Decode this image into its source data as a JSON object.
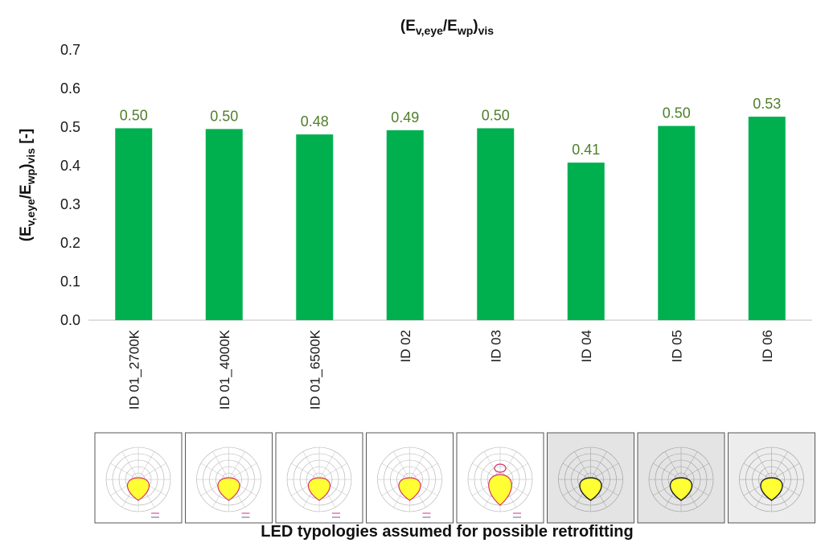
{
  "chart_data": {
    "type": "bar",
    "title_parts": [
      "(E",
      "v,eye",
      "/E",
      "wp",
      ")",
      "vis"
    ],
    "ylabel_parts": [
      "(E",
      "v,eye",
      "/E",
      "wp",
      ")",
      "vis",
      "  [-]"
    ],
    "xlabel": "LED typologies assumed for possible retrofitting",
    "categories": [
      "ID 01_2700K",
      "ID 01_4000K",
      "ID 01_6500K",
      "ID 02",
      "ID 03",
      "ID 04",
      "ID 05",
      "ID 06"
    ],
    "values": [
      0.497,
      0.495,
      0.481,
      0.492,
      0.497,
      0.408,
      0.503,
      0.527
    ],
    "data_labels": [
      "0.50",
      "0.50",
      "0.48",
      "0.49",
      "0.50",
      "0.41",
      "0.50",
      "0.53"
    ],
    "ylim": [
      0,
      0.7
    ],
    "yticks": [
      "0.0",
      "0.1",
      "0.2",
      "0.3",
      "0.4",
      "0.5",
      "0.6",
      "0.7"
    ],
    "bar_color": "#00b04f",
    "label_color": "#4f7f2a",
    "grid": false,
    "thumbnails": [
      {
        "style": "pink",
        "bg": "#ffffff"
      },
      {
        "style": "pink",
        "bg": "#ffffff"
      },
      {
        "style": "pink",
        "bg": "#ffffff"
      },
      {
        "style": "pink",
        "bg": "#ffffff"
      },
      {
        "style": "pink-tall",
        "bg": "#ffffff"
      },
      {
        "style": "dark",
        "bg": "#e4e4e4"
      },
      {
        "style": "dark",
        "bg": "#e4e4e4"
      },
      {
        "style": "dark",
        "bg": "#ededed"
      }
    ]
  }
}
